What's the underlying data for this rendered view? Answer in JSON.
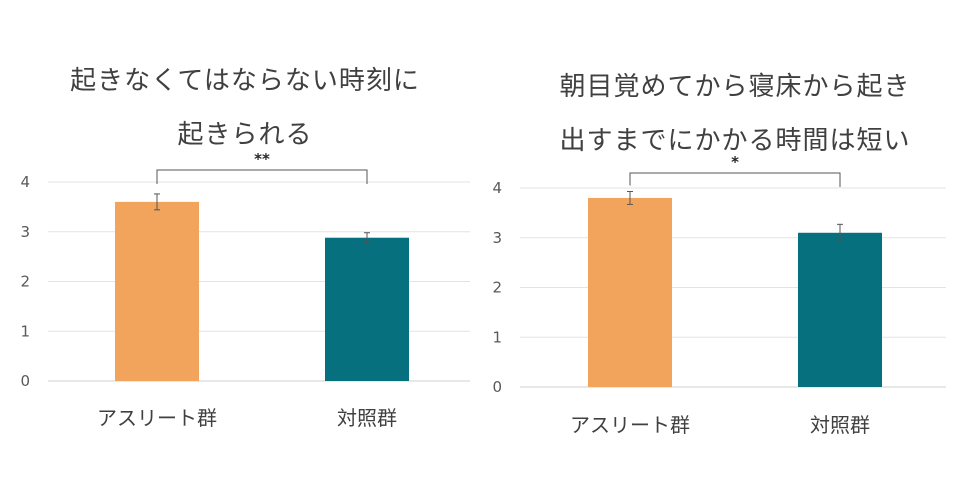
{
  "chart_data": [
    {
      "type": "bar",
      "title_lines": [
        "起きなくてはならない時刻に",
        "起きられる"
      ],
      "categories": [
        "アスリート群",
        "対照群"
      ],
      "values": [
        3.6,
        2.88
      ],
      "errors": [
        0.16,
        0.1
      ],
      "colors": [
        "#F2A45C",
        "#07707E"
      ],
      "ylim": [
        0,
        4
      ],
      "yticks": [
        0,
        1,
        2,
        3,
        4
      ],
      "grid": true,
      "significance": "**"
    },
    {
      "type": "bar",
      "title_lines": [
        "朝目覚めてから寝床から起き",
        "出すまでにかかる時間は短い"
      ],
      "categories": [
        "アスリート群",
        "対照群"
      ],
      "values": [
        3.8,
        3.1
      ],
      "errors": [
        0.13,
        0.17
      ],
      "colors": [
        "#F2A45C",
        "#07707E"
      ],
      "ylim": [
        0,
        4
      ],
      "yticks": [
        0,
        1,
        2,
        3,
        4
      ],
      "grid": true,
      "significance": "*"
    }
  ]
}
